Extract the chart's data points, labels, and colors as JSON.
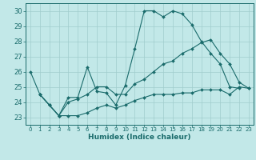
{
  "xlabel": "Humidex (Indice chaleur)",
  "xlim": [
    -0.5,
    23.5
  ],
  "ylim": [
    22.5,
    30.5
  ],
  "xticks": [
    0,
    1,
    2,
    3,
    4,
    5,
    6,
    7,
    8,
    9,
    10,
    11,
    12,
    13,
    14,
    15,
    16,
    17,
    18,
    19,
    20,
    21,
    22,
    23
  ],
  "yticks": [
    23,
    24,
    25,
    26,
    27,
    28,
    29,
    30
  ],
  "bg_color": "#c2e8e8",
  "grid_color": "#a0cccc",
  "line_color": "#1a6b6b",
  "series": [
    {
      "x": [
        0,
        1,
        2,
        3,
        4,
        5,
        6,
        7,
        8,
        9,
        10,
        11,
        12,
        13,
        14,
        15,
        16,
        17,
        18,
        19,
        20,
        21,
        22
      ],
      "y": [
        26.0,
        24.5,
        23.8,
        23.1,
        24.3,
        24.3,
        26.3,
        24.7,
        24.6,
        23.8,
        25.1,
        27.5,
        30.0,
        30.0,
        29.6,
        30.0,
        29.8,
        29.1,
        28.0,
        27.2,
        26.5,
        25.0,
        24.9
      ]
    },
    {
      "x": [
        1,
        2,
        3,
        4,
        5,
        6,
        7,
        8,
        9,
        10,
        11,
        12,
        13,
        14,
        15,
        16,
        17,
        18,
        19,
        20,
        21,
        22,
        23
      ],
      "y": [
        24.5,
        23.8,
        23.1,
        24.0,
        24.2,
        24.5,
        25.0,
        25.0,
        24.5,
        24.5,
        25.2,
        25.5,
        26.0,
        26.5,
        26.7,
        27.2,
        27.5,
        27.9,
        28.1,
        27.2,
        26.5,
        25.3,
        24.9
      ]
    },
    {
      "x": [
        1,
        2,
        3,
        4,
        5,
        6,
        7,
        8,
        9,
        10,
        11,
        12,
        13,
        14,
        15,
        16,
        17,
        18,
        19,
        20,
        21,
        22,
        23
      ],
      "y": [
        24.5,
        23.8,
        23.1,
        23.1,
        23.1,
        23.3,
        23.6,
        23.8,
        23.6,
        23.8,
        24.1,
        24.3,
        24.5,
        24.5,
        24.5,
        24.6,
        24.6,
        24.8,
        24.8,
        24.8,
        24.5,
        25.0,
        24.9
      ]
    }
  ]
}
